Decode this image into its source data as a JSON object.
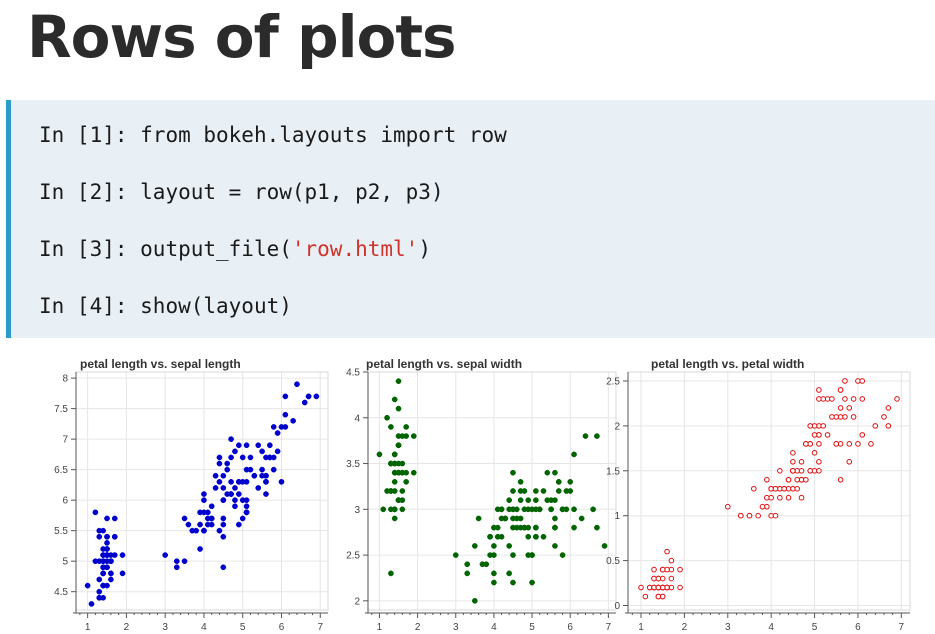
{
  "title": "Rows of plots",
  "code": {
    "lines": [
      {
        "prompt": "In [1]: ",
        "code": "from bokeh.layouts import row"
      },
      {
        "prompt": "In [2]: ",
        "code": "layout = row(p1, p2, p3)"
      },
      {
        "prompt": "In [3]: ",
        "code": "output_file(",
        "string": "'row.html'",
        "after": ")"
      },
      {
        "prompt": "In [4]: ",
        "code": "show(layout)"
      }
    ],
    "colors": {
      "accent_border": "#2b9cc9",
      "background": "#e8f0f6",
      "string": "#d0332b"
    }
  },
  "chart_data": [
    {
      "type": "scatter",
      "title": "petal length vs. sepal length",
      "xlim": [
        0.7,
        7.2
      ],
      "ylim": [
        4.2,
        8.1
      ],
      "xticks": [
        1,
        2,
        3,
        4,
        5,
        6,
        7
      ],
      "yticks": [
        4.5,
        5,
        5.5,
        6,
        6.5,
        7,
        7.5,
        8
      ],
      "yticklabels": [
        "4.5",
        "5",
        "5.5",
        "6",
        "6.5",
        "7",
        "7.5",
        "8"
      ],
      "marker": "filled-circle",
      "color": "#0000cc",
      "x": [
        1.4,
        1.4,
        1.3,
        1.5,
        1.4,
        1.7,
        1.4,
        1.5,
        1.4,
        1.5,
        1.5,
        1.6,
        1.4,
        1.1,
        1.2,
        1.5,
        1.3,
        1.4,
        1.7,
        1.5,
        1.7,
        1.5,
        1,
        1.7,
        1.9,
        1.6,
        1.6,
        1.5,
        1.4,
        1.6,
        1.6,
        1.5,
        1.5,
        1.4,
        1.5,
        1.2,
        1.3,
        1.4,
        1.3,
        1.5,
        1.3,
        1.3,
        1.3,
        1.6,
        1.9,
        1.4,
        1.6,
        1.4,
        1.5,
        1.4,
        4.7,
        4.5,
        4.9,
        4,
        4.6,
        4.5,
        4.7,
        3.3,
        4.6,
        3.9,
        3.5,
        4.2,
        4,
        4.7,
        3.6,
        4.4,
        4.5,
        4.1,
        4.5,
        3.9,
        4.8,
        4,
        4.9,
        4.7,
        4.3,
        4.4,
        4.8,
        5,
        4.5,
        3.5,
        3.8,
        3.7,
        3.9,
        5.1,
        4.5,
        4.5,
        4.7,
        4.4,
        4.1,
        4,
        4.4,
        4.6,
        4,
        3.3,
        4.2,
        4.2,
        4.2,
        4.3,
        3,
        4.1,
        6,
        5.1,
        5.9,
        5.6,
        5.8,
        6.6,
        4.5,
        6.3,
        5.8,
        6.1,
        5.1,
        5.3,
        5.5,
        5,
        5.1,
        5.3,
        5.5,
        6.7,
        6.9,
        5,
        5.7,
        4.9,
        6.7,
        4.9,
        5.7,
        6,
        4.8,
        4.9,
        5.6,
        5.8,
        6.1,
        6.4,
        5.6,
        5.1,
        5.6,
        6.1,
        5.6,
        5.5,
        4.8,
        5.4,
        5.6,
        5.1,
        5.1,
        5.9,
        5.7,
        5.2,
        5,
        5.2,
        5.4,
        5.1
      ],
      "y": [
        5.1,
        4.9,
        4.7,
        4.6,
        5,
        5.4,
        4.6,
        5,
        4.4,
        4.9,
        5.4,
        4.8,
        4.8,
        4.3,
        5.8,
        5.7,
        5.4,
        5.1,
        5.7,
        5.1,
        5.4,
        5.1,
        4.6,
        5.1,
        4.8,
        5,
        5,
        5.2,
        5.2,
        4.7,
        4.8,
        5.4,
        5.2,
        5.5,
        4.9,
        5,
        5.5,
        4.9,
        4.4,
        5.1,
        5,
        4.5,
        4.4,
        5,
        5.1,
        4.8,
        5.1,
        4.6,
        5.3,
        5,
        7,
        6.4,
        6.9,
        5.5,
        6.5,
        5.7,
        6.3,
        4.9,
        6.6,
        5.2,
        5,
        5.9,
        6,
        6.1,
        5.6,
        6.7,
        5.6,
        5.8,
        6.2,
        5.6,
        5.9,
        6.1,
        6.3,
        6.1,
        6.4,
        6.6,
        6.8,
        6.7,
        6,
        5.7,
        5.5,
        5.5,
        5.8,
        6,
        5.4,
        6,
        6.7,
        6.3,
        5.6,
        5.5,
        5.5,
        6.1,
        5.8,
        5,
        5.6,
        5.7,
        5.7,
        6.2,
        5.1,
        5.7,
        6.3,
        5.8,
        7.1,
        6.3,
        6.5,
        7.6,
        4.9,
        7.3,
        6.7,
        7.2,
        6.5,
        6.4,
        6.8,
        5.7,
        5.8,
        6.4,
        6.5,
        7.7,
        7.7,
        6,
        6.9,
        5.6,
        7.7,
        6.3,
        6.7,
        7.2,
        6.2,
        6.1,
        6.4,
        7.2,
        7.4,
        7.9,
        6.4,
        6.3,
        6.1,
        7.7,
        6.3,
        6.4,
        6,
        6.9,
        6.7,
        6.9,
        5.8,
        6.8,
        6.7,
        6.7,
        6.3,
        6.5,
        6.2,
        5.9
      ]
    },
    {
      "type": "scatter",
      "title": "petal length vs. sepal width",
      "xlim": [
        0.7,
        7.2
      ],
      "ylim": [
        1.9,
        4.5
      ],
      "xticks": [
        1,
        2,
        3,
        4,
        5,
        6,
        7
      ],
      "yticks": [
        2,
        2.5,
        3,
        3.5,
        4,
        4.5
      ],
      "yticklabels": [
        "2",
        "2.5",
        "3",
        "3.5",
        "4",
        "4.5"
      ],
      "marker": "filled-circle",
      "color": "#006400",
      "x": [
        1.4,
        1.4,
        1.3,
        1.5,
        1.4,
        1.7,
        1.4,
        1.5,
        1.4,
        1.5,
        1.5,
        1.6,
        1.4,
        1.1,
        1.2,
        1.5,
        1.3,
        1.4,
        1.7,
        1.5,
        1.7,
        1.5,
        1,
        1.7,
        1.9,
        1.6,
        1.6,
        1.5,
        1.4,
        1.6,
        1.6,
        1.5,
        1.5,
        1.4,
        1.5,
        1.2,
        1.3,
        1.4,
        1.3,
        1.5,
        1.3,
        1.3,
        1.3,
        1.6,
        1.9,
        1.4,
        1.6,
        1.4,
        1.5,
        1.4,
        4.7,
        4.5,
        4.9,
        4,
        4.6,
        4.5,
        4.7,
        3.3,
        4.6,
        3.9,
        3.5,
        4.2,
        4,
        4.7,
        3.6,
        4.4,
        4.5,
        4.1,
        4.5,
        3.9,
        4.8,
        4,
        4.9,
        4.7,
        4.3,
        4.4,
        4.8,
        5,
        4.5,
        3.5,
        3.8,
        3.7,
        3.9,
        5.1,
        4.5,
        4.5,
        4.7,
        4.4,
        4.1,
        4,
        4.4,
        4.6,
        4,
        3.3,
        4.2,
        4.2,
        4.2,
        4.3,
        3,
        4.1,
        6,
        5.1,
        5.9,
        5.6,
        5.8,
        6.6,
        4.5,
        6.3,
        5.8,
        6.1,
        5.1,
        5.3,
        5.5,
        5,
        5.1,
        5.3,
        5.5,
        6.7,
        6.9,
        5,
        5.7,
        4.9,
        6.7,
        4.9,
        5.7,
        6,
        4.8,
        4.9,
        5.6,
        5.8,
        6.1,
        6.4,
        5.6,
        5.1,
        5.6,
        6.1,
        5.6,
        5.5,
        4.8,
        5.4,
        5.6,
        5.1,
        5.1,
        5.9,
        5.7,
        5.2,
        5,
        5.2,
        5.4,
        5.1
      ],
      "y": [
        3.5,
        3,
        3.2,
        3.1,
        3.6,
        3.9,
        3.4,
        3.4,
        2.9,
        3.1,
        3.7,
        3.4,
        3,
        3,
        4,
        4.4,
        3.9,
        3.5,
        3.8,
        3.8,
        3.4,
        3.7,
        3.6,
        3.3,
        3.4,
        3,
        3.4,
        3.5,
        3.4,
        3.2,
        3.1,
        3.4,
        4.1,
        4.2,
        3.1,
        3.2,
        3.5,
        3.6,
        3,
        3.4,
        3.5,
        2.3,
        3.2,
        3.5,
        3.8,
        3,
        3.8,
        3.2,
        3.7,
        3.3,
        3.2,
        3.2,
        3.1,
        2.3,
        2.8,
        2.8,
        3.3,
        2.4,
        2.9,
        2.7,
        2,
        3,
        2.2,
        2.9,
        2.9,
        3.1,
        3,
        2.7,
        2.2,
        2.5,
        3.2,
        2.8,
        2.5,
        2.8,
        2.9,
        3,
        2.8,
        3,
        2.9,
        2.6,
        2.4,
        2.4,
        2.7,
        2.7,
        3,
        3.4,
        3.1,
        2.3,
        3,
        2.5,
        2.6,
        3,
        2.6,
        2.3,
        2.7,
        3,
        2.9,
        2.9,
        2.5,
        2.8,
        3.3,
        2.7,
        3,
        2.9,
        3,
        3,
        2.5,
        2.9,
        2.5,
        3.6,
        3.2,
        2.7,
        3,
        2.5,
        2.8,
        3.2,
        3,
        3.8,
        2.6,
        2.2,
        3.2,
        2.8,
        2.8,
        2.7,
        3.3,
        3.2,
        2.8,
        3,
        2.8,
        3,
        2.8,
        3.8,
        2.8,
        2.8,
        2.6,
        3,
        3.4,
        3.1,
        3,
        3.1,
        3.1,
        3.1,
        2.7,
        3.2,
        3.3,
        3,
        2.5,
        3,
        3.4,
        3
      ]
    },
    {
      "type": "scatter",
      "title": "petal length vs. petal width",
      "xlim": [
        0.7,
        7.2
      ],
      "ylim": [
        -0.05,
        2.6
      ],
      "xticks": [
        1,
        2,
        3,
        4,
        5,
        6,
        7
      ],
      "yticks": [
        0,
        0.5,
        1,
        1.5,
        2,
        2.5
      ],
      "yticklabels": [
        "0",
        "0.5",
        "1",
        "1.5",
        "2",
        "2.5"
      ],
      "marker": "open-circle",
      "color": "#dd1111",
      "x": [
        1.4,
        1.4,
        1.3,
        1.5,
        1.4,
        1.7,
        1.4,
        1.5,
        1.4,
        1.5,
        1.5,
        1.6,
        1.4,
        1.1,
        1.2,
        1.5,
        1.3,
        1.4,
        1.7,
        1.5,
        1.7,
        1.5,
        1,
        1.7,
        1.9,
        1.6,
        1.6,
        1.5,
        1.4,
        1.6,
        1.6,
        1.5,
        1.5,
        1.4,
        1.5,
        1.2,
        1.3,
        1.4,
        1.3,
        1.5,
        1.3,
        1.3,
        1.3,
        1.6,
        1.9,
        1.4,
        1.6,
        1.4,
        1.5,
        1.4,
        4.7,
        4.5,
        4.9,
        4,
        4.6,
        4.5,
        4.7,
        3.3,
        4.6,
        3.9,
        3.5,
        4.2,
        4,
        4.7,
        3.6,
        4.4,
        4.5,
        4.1,
        4.5,
        3.9,
        4.8,
        4,
        4.9,
        4.7,
        4.3,
        4.4,
        4.8,
        5,
        4.5,
        3.5,
        3.8,
        3.7,
        3.9,
        5.1,
        4.5,
        4.5,
        4.7,
        4.4,
        4.1,
        4,
        4.4,
        4.6,
        4,
        3.3,
        4.2,
        4.2,
        4.2,
        4.3,
        3,
        4.1,
        6,
        5.1,
        5.9,
        5.6,
        5.8,
        6.6,
        4.5,
        6.3,
        5.8,
        6.1,
        5.1,
        5.3,
        5.5,
        5,
        5.1,
        5.3,
        5.5,
        6.7,
        6.9,
        5,
        5.7,
        4.9,
        6.7,
        4.9,
        5.7,
        6,
        4.8,
        4.9,
        5.6,
        5.8,
        6.1,
        6.4,
        5.6,
        5.1,
        5.6,
        6.1,
        5.6,
        5.5,
        4.8,
        5.4,
        5.6,
        5.1,
        5.1,
        5.9,
        5.7,
        5.2,
        5,
        5.2,
        5.4,
        5.1
      ],
      "y": [
        0.2,
        0.2,
        0.2,
        0.2,
        0.2,
        0.4,
        0.3,
        0.2,
        0.2,
        0.1,
        0.2,
        0.2,
        0.1,
        0.1,
        0.2,
        0.4,
        0.4,
        0.3,
        0.3,
        0.3,
        0.2,
        0.4,
        0.2,
        0.5,
        0.2,
        0.2,
        0.4,
        0.2,
        0.2,
        0.2,
        0.2,
        0.4,
        0.1,
        0.2,
        0.2,
        0.2,
        0.2,
        0.1,
        0.2,
        0.2,
        0.3,
        0.3,
        0.2,
        0.6,
        0.4,
        0.3,
        0.2,
        0.2,
        0.2,
        0.2,
        1.4,
        1.5,
        1.5,
        1.3,
        1.5,
        1.3,
        1.6,
        1,
        1.3,
        1.4,
        1,
        1.5,
        1,
        1.4,
        1.3,
        1.4,
        1.5,
        1,
        1.5,
        1.1,
        1.8,
        1.3,
        1.5,
        1.2,
        1.3,
        1.4,
        1.4,
        1.7,
        1.5,
        1,
        1.1,
        1,
        1.2,
        1.6,
        1.5,
        1.6,
        1.5,
        1.3,
        1.3,
        1.3,
        1.2,
        1.4,
        1.2,
        1,
        1.3,
        1.2,
        1.3,
        1.3,
        1.1,
        1.3,
        2.5,
        1.9,
        2.1,
        1.8,
        2.2,
        2.1,
        1.7,
        1.8,
        1.8,
        2.5,
        2,
        1.9,
        2.1,
        2,
        2.4,
        2.3,
        1.8,
        2.2,
        2.3,
        1.5,
        2.3,
        2,
        2,
        1.8,
        2.1,
        1.8,
        1.8,
        1.8,
        2.1,
        1.6,
        1.9,
        2,
        2.2,
        1.5,
        1.4,
        2.3,
        2.4,
        1.8,
        1.8,
        2.1,
        2.4,
        2.3,
        1.9,
        2.3,
        2.5,
        2.3,
        1.9,
        2,
        2.3,
        1.8
      ]
    }
  ]
}
